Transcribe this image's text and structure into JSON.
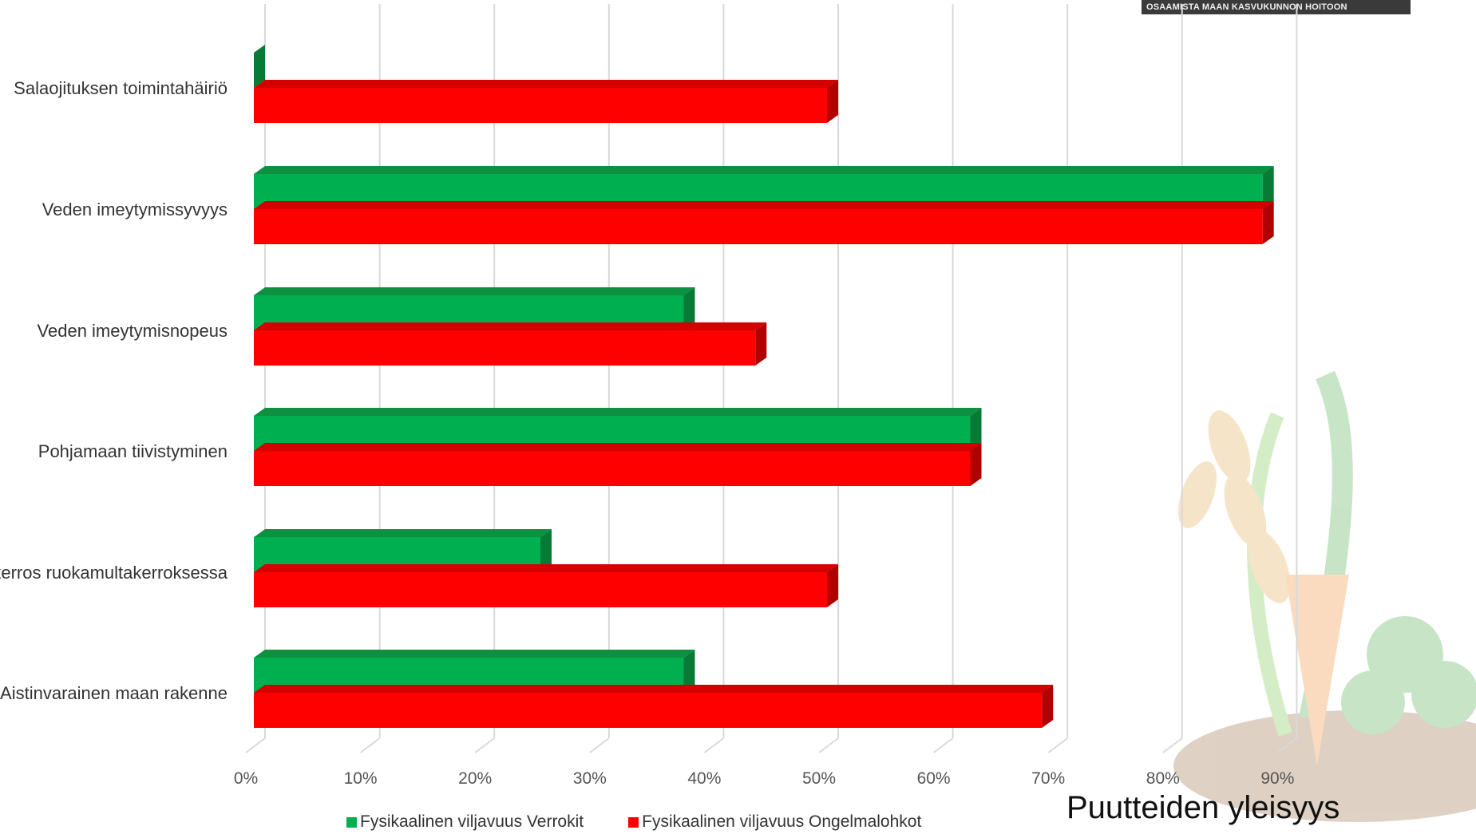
{
  "branding": {
    "text": "OSAAMISTA MAAN KASVUKUNNON HOITOON"
  },
  "colors": {
    "green": "#00b050",
    "green_top": "#0d9040",
    "green_side": "#077a35",
    "red": "#ff0000",
    "red_top": "#d40000",
    "red_side": "#b00000",
    "grid": "#d9d9d9",
    "title_green": "#1aa23a"
  },
  "chart_data": {
    "type": "bar",
    "orientation": "horizontal",
    "style": "3d-clustered",
    "categories": [
      "Salaojituksen toimintahäiriö",
      "Veden imeytymissyvyys",
      "Veden imeytymisnopeus",
      "Pohjamaan tiivistyminen",
      "kerros ruokamultakerroksessa",
      "Aistinvarainen maan rakenne"
    ],
    "series": [
      {
        "name": "Fysikaalinen viljavuus Verrokit",
        "color": "#00b050",
        "values": [
          0,
          88,
          37.5,
          62.5,
          25,
          37.5
        ]
      },
      {
        "name": "Fysikaalinen viljavuus Ongelmalohkot",
        "color": "#ff0000",
        "values": [
          50,
          88,
          43.75,
          62.5,
          50,
          68.75
        ]
      }
    ],
    "xlim": [
      0,
      90
    ],
    "xticks": [
      "0%",
      "10%",
      "20%",
      "30%",
      "40%",
      "50%",
      "60%",
      "70%",
      "80%",
      "90%"
    ],
    "xlabel": "Puutteiden yleisyys",
    "grid": true,
    "legend_position": "bottom"
  }
}
